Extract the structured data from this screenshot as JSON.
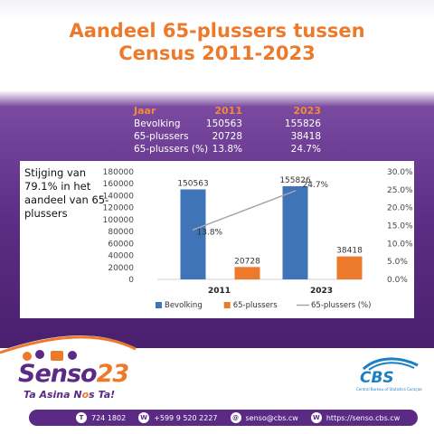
{
  "title": {
    "line1": "Aandeel 65-plussers tussen",
    "line2": "Census 2011-2023"
  },
  "summary_table": {
    "headers": [
      "Jaar",
      "2011",
      "2023"
    ],
    "rows": [
      [
        "Bevolking",
        "150563",
        "155826"
      ],
      [
        "65-plussers",
        "20728",
        "38418"
      ],
      [
        "65-plussers (%)",
        "13.8%",
        "24.7%"
      ]
    ]
  },
  "note": "Stijging van 79.1% in het aandeel van 65-plussers",
  "chart_data": {
    "type": "bar",
    "categories": [
      "2011",
      "2023"
    ],
    "series": [
      {
        "name": "Bevolking",
        "kind": "bar",
        "axis": "left",
        "values": [
          150563,
          155826
        ],
        "labels": [
          "150563",
          "155826"
        ],
        "color": "#3f74b8"
      },
      {
        "name": "65-plussers",
        "kind": "bar",
        "axis": "left",
        "values": [
          20728,
          38418
        ],
        "labels": [
          "20728",
          "38418"
        ],
        "color": "#ec7a2a"
      },
      {
        "name": "65-plussers (%)",
        "kind": "line",
        "axis": "right",
        "values": [
          13.8,
          24.7
        ],
        "labels": [
          "13.8%",
          "24.7%"
        ],
        "color": "#a6a6a6"
      }
    ],
    "ylim": [
      0,
      180000
    ],
    "yticks": [
      "180000",
      "160000",
      "140000",
      "120000",
      "100000",
      "80000",
      "60000",
      "40000",
      "20000",
      "0"
    ],
    "y2lim": [
      0,
      30
    ],
    "y2ticks": [
      "30.0%",
      "25.0%",
      "20.0%",
      "15.0%",
      "10.0%",
      "5.0%",
      "0.0%"
    ],
    "legend_position": "bottom",
    "grid": false
  },
  "brand": {
    "logo_name": "Senso",
    "logo_number": "23",
    "tagline_start": "Ta Asina N",
    "tagline_o": "o",
    "tagline_end": "s Ta!",
    "cbs_name": "CBS",
    "cbs_full": "Central Bureau of Statistics Curaçao"
  },
  "contacts": [
    {
      "icon": "phone-icon",
      "glyph": "T",
      "text": "724 1802"
    },
    {
      "icon": "whatsapp-icon",
      "glyph": "W",
      "text": "+599 9 520 2227"
    },
    {
      "icon": "email-icon",
      "glyph": "@",
      "text": "senso@cbs.cw"
    },
    {
      "icon": "web-icon",
      "glyph": "W",
      "text": "https://senso.cbs.cw"
    }
  ],
  "colors": {
    "title": "#ec7a2a",
    "purple": "#5a2a84",
    "bar_blue": "#3f74b8",
    "bar_orange": "#ec7a2a",
    "line_grey": "#a6a6a6"
  }
}
